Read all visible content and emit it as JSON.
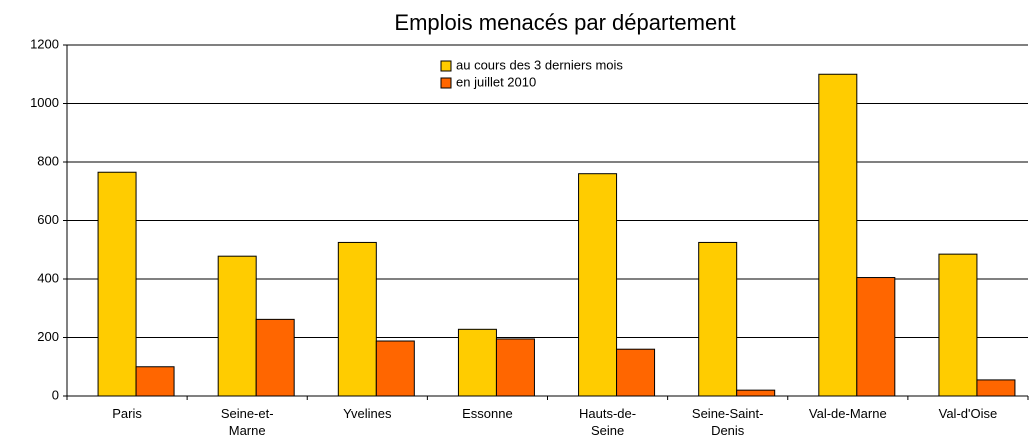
{
  "chart_data": {
    "type": "bar",
    "title": "Emplois menacés par département",
    "categories": [
      "Paris",
      "Seine-et-\nMarne",
      "Yvelines",
      "Essonne",
      "Hauts-de-\nSeine",
      "Seine-Saint-\nDenis",
      "Val-de-Marne",
      "Val-d'Oise"
    ],
    "series": [
      {
        "name": "au cours des 3 derniers mois",
        "color": "#ffcc00",
        "values": [
          765,
          478,
          525,
          228,
          760,
          525,
          1100,
          485
        ]
      },
      {
        "name": "en juillet 2010",
        "color": "#ff6600",
        "values": [
          100,
          262,
          188,
          195,
          160,
          20,
          405,
          55
        ]
      }
    ],
    "ylim": [
      0,
      1200
    ],
    "yticks": [
      0,
      200,
      400,
      600,
      800,
      1000,
      1200
    ],
    "grid": true,
    "legend": "top"
  }
}
